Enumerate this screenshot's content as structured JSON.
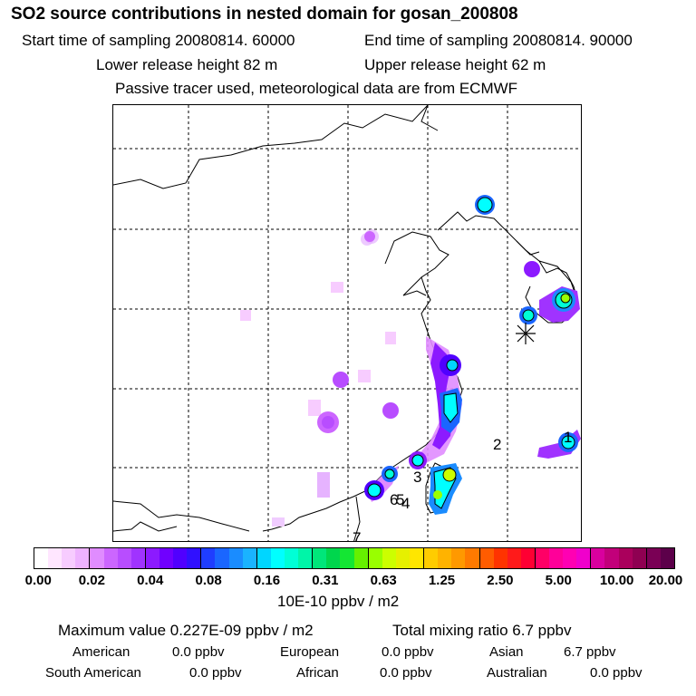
{
  "header": {
    "title": "SO2 source contributions in nested domain for gosan_200808",
    "start_time": "Start time of sampling 20080814. 60000",
    "end_time": "End time of sampling 20080814. 90000",
    "lower_height": "Lower release height   82 m",
    "upper_height": "Upper release height   62 m",
    "note": "Passive tracer used, meteorological data are from ECMWF"
  },
  "map": {
    "receptor_marker": "receptor-star-icon",
    "source_labels": [
      "1",
      "2",
      "3",
      "4",
      "5",
      "6",
      "7"
    ]
  },
  "colorbar": {
    "ticks": [
      "0.00",
      "0.02",
      "0.04",
      "0.08",
      "0.16",
      "0.31",
      "0.63",
      "1.25",
      "2.50",
      "5.00",
      "10.00",
      "20.00"
    ],
    "colors": [
      "#ffffff",
      "#ffe6ff",
      "#f7ccff",
      "#eeb2ff",
      "#e08cff",
      "#cc66ff",
      "#b84dff",
      "#a033ff",
      "#8c1aff",
      "#7000ff",
      "#5000ff",
      "#3010ff",
      "#1f3dff",
      "#1a66ff",
      "#1a8cff",
      "#1ab3ff",
      "#00d6ff",
      "#00ffff",
      "#00ffd6",
      "#00f5a8",
      "#00e67a",
      "#00d64d",
      "#14e633",
      "#66f000",
      "#99ff00",
      "#ccff00",
      "#e6f000",
      "#ffe600",
      "#ffcc00",
      "#ffb300",
      "#ff9900",
      "#ff7a00",
      "#ff5c00",
      "#ff3300",
      "#ff1a1a",
      "#ff0033",
      "#ff0066",
      "#ff0099",
      "#ff00b3",
      "#f000cc",
      "#d9009e",
      "#c2007a",
      "#aa005c",
      "#8f0052",
      "#7a0055",
      "#5c004a"
    ],
    "unit": "10E-10 ppbv / m2"
  },
  "summary": {
    "maximum": "Maximum value  0.227E-09 ppbv / m2",
    "total": "Total mixing ratio        6.7 ppbv",
    "rows": [
      [
        {
          "k": "American",
          "v": "0.0 ppbv"
        },
        {
          "k": "European",
          "v": "0.0 ppbv"
        },
        {
          "k": "Asian",
          "v": "6.7 ppbv"
        }
      ],
      [
        {
          "k": "South American",
          "v": "0.0 ppbv"
        },
        {
          "k": "African",
          "v": "0.0 ppbv"
        },
        {
          "k": "Australian",
          "v": "0.0 ppbv"
        }
      ]
    ]
  }
}
